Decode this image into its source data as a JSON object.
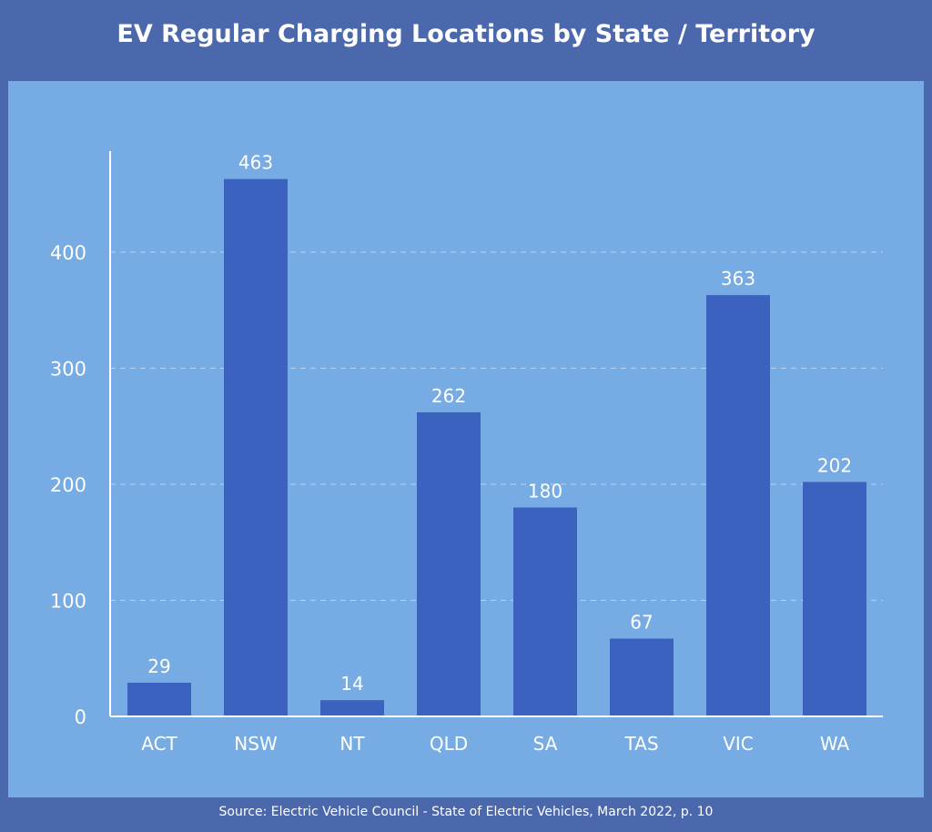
{
  "chart_data": {
    "type": "bar",
    "title": "EV Regular Charging Locations by State / Territory",
    "categories": [
      "ACT",
      "NSW",
      "NT",
      "QLD",
      "SA",
      "TAS",
      "VIC",
      "WA"
    ],
    "values": [
      29,
      463,
      14,
      262,
      180,
      67,
      363,
      202
    ],
    "yticks": [
      0,
      100,
      200,
      300,
      400
    ],
    "ylim": [
      0,
      490
    ],
    "grid": true,
    "colors": {
      "background": "#4b68ad",
      "panel": "#77abe3",
      "bar": "#3c62c0",
      "text": "#ffffff"
    }
  },
  "source": "Source: Electric Vehicle Council - State of Electric Vehicles, March 2022, p. 10"
}
